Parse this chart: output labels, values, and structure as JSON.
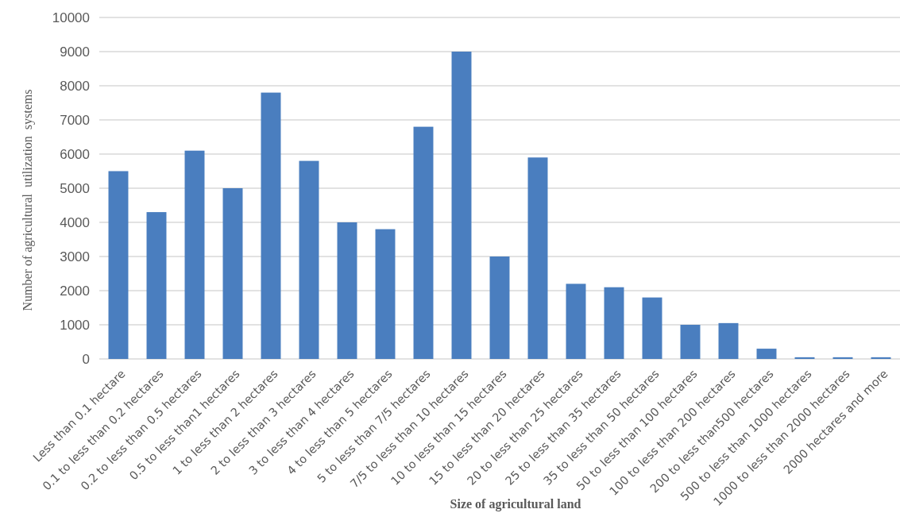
{
  "chart_data": {
    "type": "bar",
    "xlabel": "Size of agricultural land",
    "ylabel": "Number of agricultural  utilization  systems",
    "categories": [
      "Less than 0.1 hectare",
      "0.1 to less than 0.2 hectares",
      "0.2 to less than 0.5 hectares",
      "0.5 to less than1 hectares",
      "1 to less than 2 hectares",
      "2 to less than 3 hectares",
      "3 to less than 4 hectares",
      "4 to less than 5 hectares",
      "5 to less than 7/5 hectares",
      "7/5 to less than 10 hectares",
      "10 to less than 15 hectares",
      "15 to less than 20 hectares",
      "20 to less than 25 hectares",
      "25 to less than 35 hectares",
      "35 to less than 50 hectares",
      "50 to less than 100 hectares",
      "100 to less than 200 hectares",
      "200 to less than500 hectares",
      "500 to less than 1000 hectares",
      "1000 to less than 2000 hectares",
      "2000 hectares and more"
    ],
    "values": [
      5500,
      4300,
      6100,
      5000,
      7800,
      5800,
      4000,
      3800,
      6800,
      9000,
      3000,
      5900,
      2200,
      2100,
      1800,
      1000,
      1050,
      300,
      50,
      50,
      50
    ],
    "color": "#4a7ebf",
    "ylim": [
      0,
      10000
    ],
    "yticks": [
      0,
      1000,
      2000,
      3000,
      4000,
      5000,
      6000,
      7000,
      8000,
      9000,
      10000
    ],
    "grid": "y"
  }
}
